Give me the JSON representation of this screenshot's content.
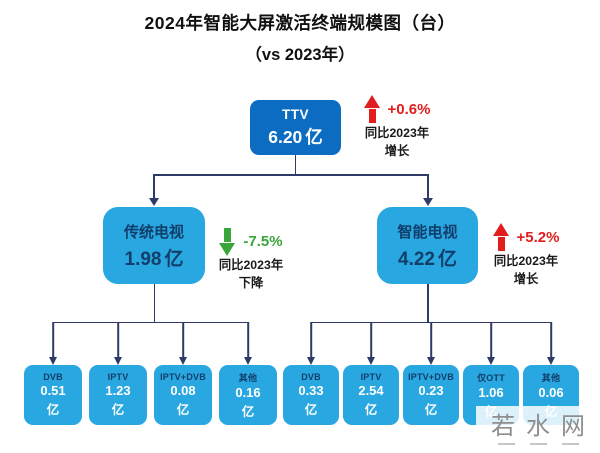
{
  "title": {
    "line1": "2024年智能大屏激活终端规模图（台）",
    "line2": "（vs 2023年）"
  },
  "colors": {
    "root_box": "#0c6cc2",
    "branch_box": "#29a7e0",
    "navy_text": "#113e6b",
    "connector": "#2e3b66",
    "increase_red": "#e11d1d",
    "decrease_green": "#3aa53a"
  },
  "root": {
    "label": "TTV",
    "value": "6.20",
    "unit": "亿",
    "change": {
      "direction": "up",
      "percent": "+0.6%",
      "note_line1": "同比2023年",
      "note_line2": "增长"
    }
  },
  "branches": [
    {
      "label": "传统电视",
      "value": "1.98",
      "unit": "亿",
      "change": {
        "direction": "down",
        "percent": "-7.5%",
        "note_line1": "同比2023年",
        "note_line2": "下降"
      },
      "children": [
        {
          "label": "DVB",
          "value": "0.51",
          "unit": "亿"
        },
        {
          "label": "IPTV",
          "value": "1.23",
          "unit": "亿"
        },
        {
          "label": "IPTV+DVB",
          "value": "0.08",
          "unit": "亿"
        },
        {
          "label": "其他",
          "value": "0.16",
          "unit": "亿"
        }
      ]
    },
    {
      "label": "智能电视",
      "value": "4.22",
      "unit": "亿",
      "change": {
        "direction": "up",
        "percent": "+5.2%",
        "note_line1": "同比2023年",
        "note_line2": "增长"
      },
      "children": [
        {
          "label": "DVB",
          "value": "0.33",
          "unit": "亿"
        },
        {
          "label": "IPTV",
          "value": "2.54",
          "unit": "亿"
        },
        {
          "label": "IPTV+DVB",
          "value": "0.23",
          "unit": "亿"
        },
        {
          "label": "仅OTT",
          "value": "1.06",
          "unit": "亿"
        },
        {
          "label": "其他",
          "value": "0.06",
          "unit": "亿"
        }
      ]
    }
  ],
  "watermark": {
    "text": "若水网"
  }
}
